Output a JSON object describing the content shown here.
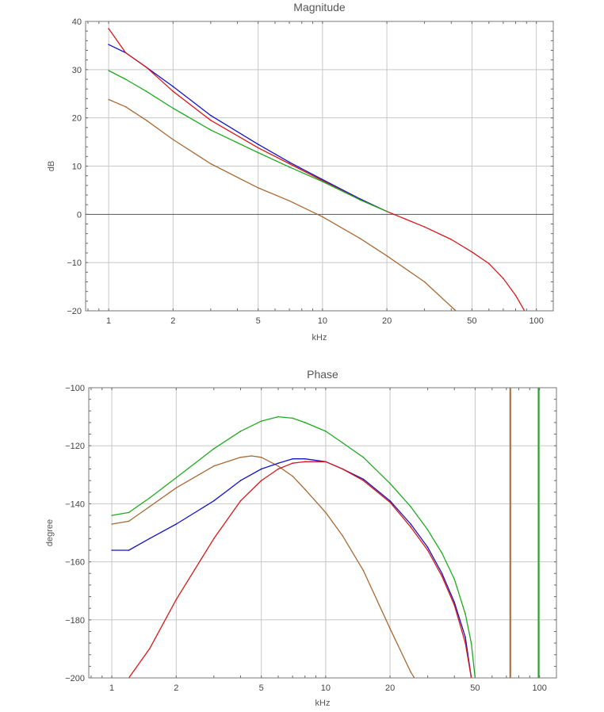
{
  "chart_data": [
    {
      "type": "line",
      "title": "Magnitude",
      "xlabel": "kHz",
      "ylabel": "dB",
      "x_scale": "log",
      "xlim": [
        0.78,
        120
      ],
      "ylim": [
        -20,
        40
      ],
      "x_ticks": [
        1,
        2,
        5,
        10,
        20,
        50,
        100
      ],
      "y_ticks": [
        40,
        30,
        20,
        10,
        0,
        -10,
        -20
      ],
      "tick_labels_y": [
        "40",
        "30",
        "20",
        "10",
        "0",
        "−10",
        "−20"
      ],
      "grid": true,
      "series": [
        {
          "color": "#1515c8",
          "x": [
            1,
            1.2,
            1.5,
            2,
            3,
            5,
            7,
            10,
            15,
            20
          ],
          "values": [
            35.2,
            33.5,
            30.5,
            26.5,
            20.5,
            14.5,
            10.8,
            7.2,
            3.2,
            0.6
          ]
        },
        {
          "color": "#d81818",
          "x": [
            1,
            1.2,
            1.5,
            2,
            3,
            5,
            7,
            10,
            15,
            20,
            30,
            40,
            50,
            60,
            70,
            80,
            88
          ],
          "values": [
            38.5,
            33.5,
            30.5,
            25.5,
            19.5,
            13.8,
            10.5,
            7.0,
            3.0,
            0.6,
            -2.6,
            -5.2,
            -7.8,
            -10.2,
            -13.3,
            -16.8,
            -20.0
          ]
        },
        {
          "color": "#1faa1f",
          "x": [
            1,
            1.2,
            1.5,
            2,
            3,
            5,
            7,
            10,
            15,
            20
          ],
          "values": [
            29.8,
            28.0,
            25.5,
            22.0,
            17.5,
            12.8,
            9.8,
            6.8,
            3.0,
            0.6
          ]
        },
        {
          "color": "#a86a35",
          "x": [
            1,
            1.2,
            1.5,
            2,
            3,
            5,
            7,
            10,
            15,
            20,
            30,
            42
          ],
          "values": [
            23.8,
            22.3,
            19.5,
            15.5,
            10.5,
            5.5,
            2.8,
            -0.5,
            -5.0,
            -8.6,
            -14.0,
            -20.0
          ]
        }
      ]
    },
    {
      "type": "line",
      "title": "Phase",
      "xlabel": "kHz",
      "ylabel": "degree",
      "x_scale": "log",
      "xlim": [
        0.78,
        120
      ],
      "ylim": [
        -200,
        -100
      ],
      "x_ticks": [
        1,
        2,
        5,
        10,
        20,
        50,
        100
      ],
      "y_ticks": [
        -100,
        -120,
        -140,
        -160,
        -180,
        -200
      ],
      "tick_labels_y": [
        "−100",
        "−120",
        "−140",
        "−160",
        "−180",
        "−200"
      ],
      "grid": true,
      "series": [
        {
          "color": "#1faa1f",
          "x": [
            1,
            1.2,
            1.5,
            2,
            3,
            4,
            5,
            6,
            7,
            8,
            10,
            12,
            15,
            20,
            25,
            30,
            35,
            40,
            45,
            48,
            50
          ],
          "values": [
            -144,
            -143,
            -138,
            -131,
            -121,
            -115,
            -111.5,
            -110,
            -110.5,
            -112,
            -115,
            -119,
            -124,
            -133,
            -141,
            -149,
            -157,
            -166,
            -178,
            -188,
            -200
          ]
        },
        {
          "color": "#a86a35",
          "x": [
            1,
            1.2,
            1.5,
            2,
            3,
            4,
            4.5,
            5,
            6,
            7,
            8,
            10,
            12,
            15,
            20,
            25,
            26
          ],
          "values": [
            -147,
            -146,
            -141,
            -134.5,
            -127,
            -124,
            -123.5,
            -124,
            -127,
            -130.5,
            -135,
            -143,
            -151,
            -163,
            -183,
            -198,
            -200
          ]
        },
        {
          "color": "#1515c8",
          "x": [
            1,
            1.2,
            1.5,
            2,
            3,
            4,
            5,
            6,
            7,
            8,
            10,
            12,
            15,
            20,
            25,
            30,
            35,
            40,
            45,
            48
          ],
          "values": [
            -156,
            -156,
            -152,
            -147,
            -139,
            -132,
            -128,
            -126,
            -124.5,
            -124.5,
            -125.5,
            -128,
            -131.5,
            -139,
            -147,
            -155,
            -164,
            -174,
            -186,
            -200
          ]
        },
        {
          "color": "#d81818",
          "x": [
            1.2,
            1.5,
            2,
            3,
            4,
            5,
            6,
            7,
            8,
            10,
            12,
            15,
            20,
            25,
            30,
            35,
            40,
            45,
            48
          ],
          "values": [
            -200,
            -190,
            -173,
            -152,
            -139,
            -132,
            -128,
            -126,
            -125.5,
            -125.5,
            -128,
            -132,
            -139.5,
            -148,
            -156,
            -165,
            -175,
            -188,
            -200
          ]
        }
      ],
      "vertical_lines": [
        {
          "color": "#a86a35",
          "x": 73
        },
        {
          "color": "#1faa1f",
          "x": 99
        }
      ]
    }
  ]
}
